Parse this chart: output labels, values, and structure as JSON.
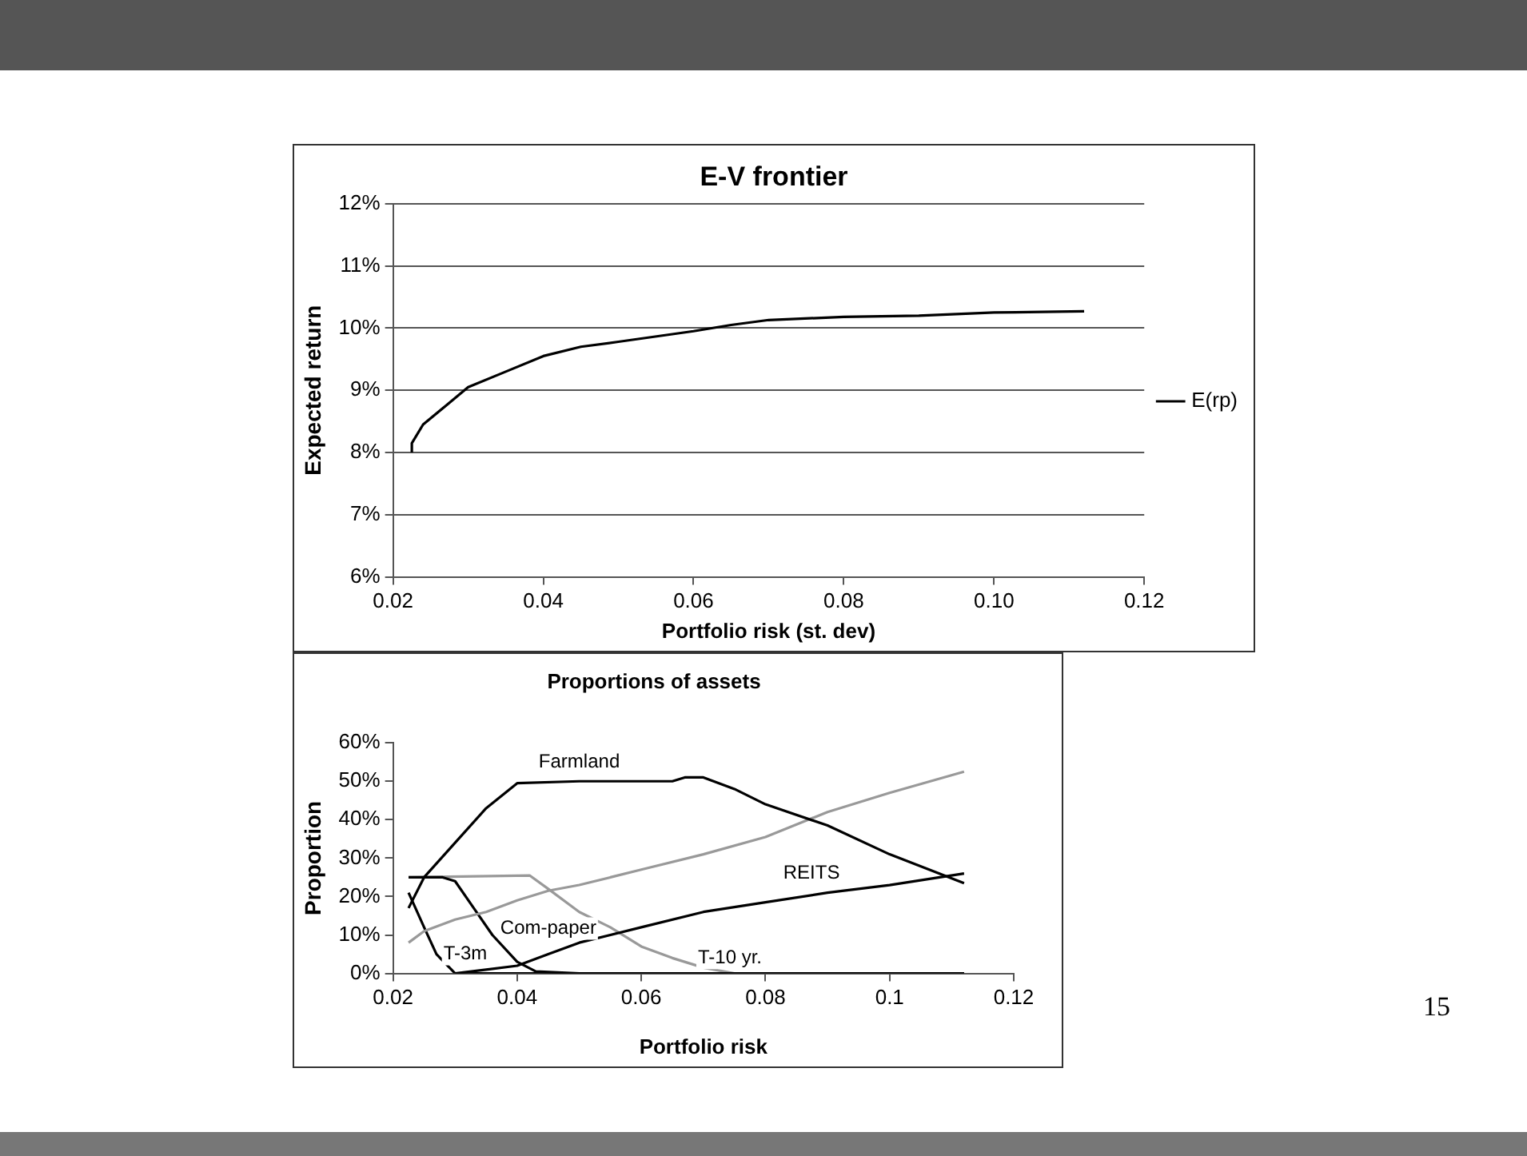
{
  "chart_data": [
    {
      "type": "line",
      "title": "E-V frontier",
      "xlabel": "Portfolio risk (st. dev)",
      "ylabel": "Expected return",
      "xlim": [
        0.02,
        0.12
      ],
      "xticks": [
        0.02,
        0.04,
        0.06,
        0.08,
        {
          "value": 0.1,
          "label": "0.10"
        },
        0.12
      ],
      "ylim": [
        6,
        12
      ],
      "yticks": [
        {
          "value": 6,
          "label": "6%"
        },
        {
          "value": 7,
          "label": "7%"
        },
        {
          "value": 8,
          "label": "8%"
        },
        {
          "value": 9,
          "label": "9%"
        },
        {
          "value": 10,
          "label": "10%"
        },
        {
          "value": 11,
          "label": "11%"
        },
        {
          "value": 12,
          "label": "12%"
        }
      ],
      "grid": "y",
      "legend": "right",
      "marker": "none",
      "series": [
        {
          "name": "E(rp)",
          "color": "#000000",
          "x": [
            0.0225,
            0.0225,
            0.024,
            0.027,
            0.03,
            0.035,
            0.04,
            0.045,
            0.05,
            0.06,
            0.065,
            0.07,
            0.08,
            0.09,
            0.1,
            0.112
          ],
          "values": [
            8.0,
            8.15,
            8.45,
            8.75,
            9.05,
            9.3,
            9.55,
            9.7,
            9.78,
            9.95,
            10.05,
            10.13,
            10.18,
            10.2,
            10.25,
            10.27
          ]
        }
      ]
    },
    {
      "type": "line",
      "title": "Proportions of assets",
      "xlabel": "Portfolio risk",
      "ylabel": "Proportion",
      "xlim": [
        0.02,
        0.12
      ],
      "xticks": [
        0.02,
        0.04,
        0.06,
        0.08,
        0.1,
        0.12
      ],
      "ylim": [
        0,
        60
      ],
      "yticks": [
        {
          "value": 0,
          "label": "0%"
        },
        {
          "value": 10,
          "label": "10%"
        },
        {
          "value": 20,
          "label": "20%"
        },
        {
          "value": 30,
          "label": "30%"
        },
        {
          "value": 40,
          "label": "40%"
        },
        {
          "value": 50,
          "label": "50%"
        },
        {
          "value": 60,
          "label": "60%"
        }
      ],
      "grid": false,
      "legend": false,
      "marker": "none",
      "annotations": [
        "15"
      ],
      "series": [
        {
          "name": "Farmland",
          "color": "#000000",
          "x": [
            0.0225,
            0.025,
            0.03,
            0.035,
            0.04,
            0.05,
            0.065,
            0.067,
            0.07,
            0.075,
            0.08,
            0.09,
            0.1,
            0.112
          ],
          "values": [
            17,
            25,
            34,
            43,
            49.5,
            50,
            50,
            51,
            51,
            48,
            44,
            38.5,
            31,
            23.5
          ]
        },
        {
          "color": "#999999",
          "x": [
            0.0225,
            0.025,
            0.03,
            0.035,
            0.04,
            0.045,
            0.05,
            0.06,
            0.07,
            0.08,
            0.09,
            0.1,
            0.112
          ],
          "values": [
            8,
            11,
            14,
            16,
            19,
            21.5,
            23,
            27,
            31,
            35.5,
            42,
            47,
            52.5
          ]
        },
        {
          "name": "REITS",
          "color": "#000000",
          "x": [
            0.03,
            0.035,
            0.04,
            0.045,
            0.05,
            0.06,
            0.07,
            0.08,
            0.09,
            0.1,
            0.112
          ],
          "values": [
            0,
            1,
            2,
            5,
            8,
            12,
            16,
            18.5,
            21,
            23,
            26
          ]
        },
        {
          "name": "Com-paper",
          "color": "#000000",
          "x": [
            0.0225,
            0.028,
            0.03,
            0.033,
            0.036,
            0.04,
            0.043,
            0.05,
            0.112
          ],
          "values": [
            25,
            25,
            24,
            17,
            10,
            3,
            0.5,
            0,
            0
          ]
        },
        {
          "name": "T-3m",
          "color": "#000000",
          "x": [
            0.0225,
            0.025,
            0.027,
            0.03,
            0.112
          ],
          "values": [
            21,
            12,
            5,
            0,
            0
          ]
        },
        {
          "name": "T-10 yr.",
          "color": "#999999",
          "x": [
            0.0225,
            0.042,
            0.045,
            0.05,
            0.055,
            0.06,
            0.065,
            0.07,
            0.075,
            0.112
          ],
          "values": [
            25,
            25.5,
            22,
            16,
            12,
            7,
            4,
            1.5,
            0,
            0
          ]
        }
      ]
    }
  ]
}
